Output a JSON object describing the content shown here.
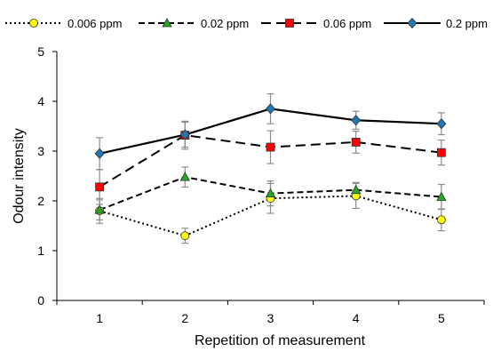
{
  "chart_data": {
    "type": "line",
    "title": "",
    "xlabel": "Repetition of measurement",
    "ylabel": "Odour intensity",
    "x": [
      1,
      2,
      3,
      4,
      5
    ],
    "xticks": [
      "1",
      "2",
      "3",
      "4",
      "5"
    ],
    "yticks": [
      "0",
      "1",
      "2",
      "3",
      "4",
      "5"
    ],
    "ylim": [
      0,
      5
    ],
    "grid": "none",
    "legend_position": "top",
    "series": [
      {
        "name": "0.006 ppm",
        "values": [
          1.8,
          1.3,
          2.05,
          2.1,
          1.62
        ],
        "error": [
          0.25,
          0.15,
          0.3,
          0.25,
          0.22
        ],
        "color": "#000000",
        "marker": "circle",
        "marker_color": "#ffff00",
        "line_style": "dotted"
      },
      {
        "name": "0.02 ppm",
        "values": [
          1.82,
          2.48,
          2.15,
          2.22,
          2.08
        ],
        "error": [
          0.2,
          0.2,
          0.25,
          0.15,
          0.25
        ],
        "color": "#000000",
        "marker": "triangle",
        "marker_color": "#22aa22",
        "line_style": "short-dash"
      },
      {
        "name": "0.06 ppm",
        "values": [
          2.28,
          3.32,
          3.08,
          3.18,
          2.97
        ],
        "error": [
          0.35,
          0.28,
          0.33,
          0.22,
          0.25
        ],
        "color": "#000000",
        "marker": "square",
        "marker_color": "#ff0000",
        "line_style": "long-dash"
      },
      {
        "name": "0.2 ppm",
        "values": [
          2.95,
          3.33,
          3.85,
          3.62,
          3.55
        ],
        "error": [
          0.32,
          0.25,
          0.3,
          0.18,
          0.22
        ],
        "color": "#000000",
        "marker": "diamond",
        "marker_color": "#1f77b4",
        "line_style": "solid"
      }
    ]
  }
}
